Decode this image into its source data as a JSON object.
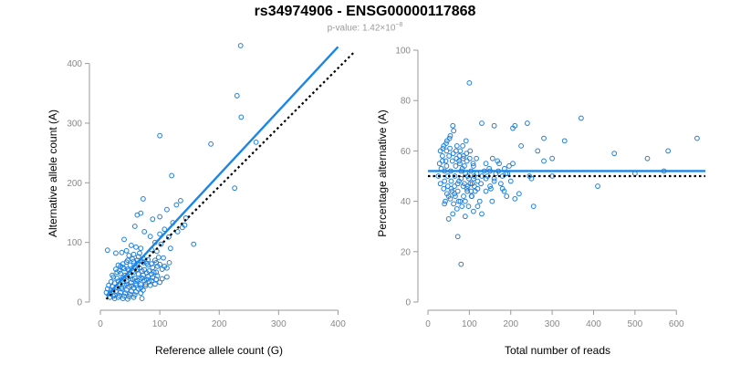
{
  "title": "rs34974906 - ENSG00000117868",
  "subtitle": {
    "prefix": "p-value: 1.42×10",
    "exponent": "−8"
  },
  "colors": {
    "points": "#1f7fdc",
    "fit_line": "#1a86e6",
    "reference_line": "#000000",
    "axis": "#999999",
    "tick_label": "#888888",
    "axis_label": "#000000"
  },
  "chart_data": [
    {
      "type": "scatter",
      "id": "left",
      "xlabel": "Reference allele count (G)",
      "ylabel": "Alternative allele count (A)",
      "xlim": [
        0,
        430
      ],
      "ylim": [
        0,
        430
      ],
      "xticks": [
        0,
        100,
        200,
        300,
        400
      ],
      "yticks": [
        0,
        100,
        200,
        300,
        400
      ],
      "grid": false,
      "fit_line": {
        "x": [
          10,
          400
        ],
        "y": [
          10,
          428
        ],
        "style": "solid"
      },
      "reference_line": {
        "x": [
          10,
          428
        ],
        "y": [
          5,
          420
        ],
        "style": "dotted"
      },
      "points": [
        [
          236,
          430
        ],
        [
          230,
          346
        ],
        [
          237,
          310
        ],
        [
          100,
          279
        ],
        [
          186,
          265
        ],
        [
          262,
          268
        ],
        [
          120,
          212
        ],
        [
          226,
          191
        ],
        [
          72,
          173
        ],
        [
          135,
          170
        ],
        [
          128,
          163
        ],
        [
          112,
          155
        ],
        [
          68,
          149
        ],
        [
          62,
          146
        ],
        [
          100,
          143
        ],
        [
          88,
          139
        ],
        [
          122,
          133
        ],
        [
          142,
          129
        ],
        [
          144,
          141
        ],
        [
          58,
          127
        ],
        [
          108,
          122
        ],
        [
          74,
          118
        ],
        [
          100,
          114
        ],
        [
          84,
          110
        ],
        [
          115,
          109
        ],
        [
          92,
          100
        ],
        [
          102,
          97
        ],
        [
          157,
          97
        ],
        [
          40,
          105
        ],
        [
          52,
          95
        ],
        [
          60,
          92
        ],
        [
          68,
          90
        ],
        [
          86,
          88
        ],
        [
          95,
          85
        ],
        [
          12,
          87
        ],
        [
          26,
          82
        ],
        [
          36,
          83
        ],
        [
          44,
          86
        ],
        [
          48,
          78
        ],
        [
          56,
          80
        ],
        [
          64,
          76
        ],
        [
          72,
          73
        ],
        [
          80,
          71
        ],
        [
          92,
          70
        ],
        [
          98,
          75
        ],
        [
          106,
          74
        ],
        [
          56,
          68
        ],
        [
          62,
          65
        ],
        [
          72,
          66
        ],
        [
          80,
          62
        ],
        [
          88,
          58
        ],
        [
          96,
          60
        ],
        [
          104,
          55
        ],
        [
          112,
          57
        ],
        [
          44,
          67
        ],
        [
          50,
          62
        ],
        [
          58,
          59
        ],
        [
          66,
          57
        ],
        [
          74,
          54
        ],
        [
          82,
          52
        ],
        [
          90,
          50
        ],
        [
          34,
          60
        ],
        [
          40,
          56
        ],
        [
          48,
          53
        ],
        [
          56,
          50
        ],
        [
          64,
          47
        ],
        [
          72,
          45
        ],
        [
          80,
          43
        ],
        [
          88,
          41
        ],
        [
          96,
          44
        ],
        [
          28,
          50
        ],
        [
          34,
          48
        ],
        [
          42,
          45
        ],
        [
          50,
          43
        ],
        [
          58,
          40
        ],
        [
          66,
          38
        ],
        [
          74,
          36
        ],
        [
          82,
          34
        ],
        [
          22,
          42
        ],
        [
          28,
          40
        ],
        [
          36,
          37
        ],
        [
          44,
          35
        ],
        [
          52,
          33
        ],
        [
          60,
          31
        ],
        [
          68,
          29
        ],
        [
          76,
          27
        ],
        [
          18,
          34
        ],
        [
          24,
          32
        ],
        [
          32,
          30
        ],
        [
          40,
          28
        ],
        [
          48,
          26
        ],
        [
          56,
          24
        ],
        [
          64,
          22
        ],
        [
          72,
          20
        ],
        [
          14,
          28
        ],
        [
          20,
          26
        ],
        [
          28,
          24
        ],
        [
          36,
          22
        ],
        [
          44,
          20
        ],
        [
          52,
          18
        ],
        [
          60,
          17
        ],
        [
          68,
          15
        ],
        [
          12,
          22
        ],
        [
          18,
          20
        ],
        [
          26,
          18
        ],
        [
          34,
          16
        ],
        [
          42,
          15
        ],
        [
          50,
          13
        ],
        [
          58,
          12
        ],
        [
          10,
          16
        ],
        [
          16,
          14
        ],
        [
          24,
          12
        ],
        [
          32,
          11
        ],
        [
          40,
          10
        ],
        [
          48,
          9
        ],
        [
          56,
          8
        ],
        [
          30,
          62
        ],
        [
          38,
          64
        ],
        [
          46,
          70
        ],
        [
          54,
          72
        ],
        [
          62,
          70
        ],
        [
          70,
          68
        ],
        [
          78,
          65
        ],
        [
          86,
          64
        ],
        [
          94,
          66
        ],
        [
          100,
          63
        ],
        [
          108,
          60
        ],
        [
          116,
          66
        ],
        [
          20,
          45
        ],
        [
          26,
          55
        ],
        [
          32,
          52
        ],
        [
          38,
          58
        ],
        [
          46,
          55
        ],
        [
          54,
          52
        ],
        [
          62,
          55
        ],
        [
          70,
          52
        ],
        [
          78,
          49
        ],
        [
          86,
          47
        ],
        [
          94,
          50
        ],
        [
          30,
          35
        ],
        [
          38,
          40
        ],
        [
          46,
          42
        ],
        [
          54,
          38
        ],
        [
          62,
          36
        ],
        [
          70,
          40
        ],
        [
          78,
          38
        ],
        [
          86,
          36
        ],
        [
          94,
          38
        ],
        [
          104,
          39
        ],
        [
          112,
          42
        ],
        [
          36,
          25
        ],
        [
          44,
          30
        ],
        [
          52,
          27
        ],
        [
          60,
          28
        ],
        [
          68,
          24
        ],
        [
          76,
          30
        ],
        [
          84,
          28
        ],
        [
          92,
          30
        ],
        [
          100,
          33
        ],
        [
          70,
          6
        ],
        [
          22,
          10
        ],
        [
          30,
          8
        ],
        [
          38,
          6
        ],
        [
          46,
          5
        ],
        [
          16,
          8
        ],
        [
          24,
          6
        ],
        [
          138,
          125
        ],
        [
          130,
          118
        ],
        [
          66,
          82
        ],
        [
          118,
          90
        ]
      ]
    },
    {
      "type": "scatter",
      "id": "right",
      "xlabel": "Total number of reads",
      "ylabel": "Percentage alternative (A)",
      "xlim": [
        0,
        670
      ],
      "ylim": [
        0,
        100
      ],
      "xticks": [
        0,
        100,
        200,
        300,
        400,
        500,
        600
      ],
      "yticks": [
        0,
        20,
        40,
        60,
        80,
        100
      ],
      "grid": false,
      "fit_line": {
        "x": [
          0,
          670
        ],
        "y": [
          52,
          52
        ],
        "style": "solid"
      },
      "reference_line": {
        "x": [
          0,
          670
        ],
        "y": [
          50,
          50
        ],
        "style": "dotted"
      },
      "points": [
        [
          100,
          87
        ],
        [
          370,
          73
        ],
        [
          650,
          65
        ],
        [
          210,
          70
        ],
        [
          205,
          69
        ],
        [
          240,
          71
        ],
        [
          130,
          71
        ],
        [
          160,
          70
        ],
        [
          330,
          64
        ],
        [
          280,
          65
        ],
        [
          580,
          60
        ],
        [
          450,
          59
        ],
        [
          530,
          57
        ],
        [
          300,
          57
        ],
        [
          265,
          60
        ],
        [
          280,
          56
        ],
        [
          410,
          46
        ],
        [
          570,
          52
        ],
        [
          500,
          51
        ],
        [
          250,
          49
        ],
        [
          205,
          55
        ],
        [
          225,
          62
        ],
        [
          245,
          50
        ],
        [
          300,
          50
        ],
        [
          255,
          38
        ],
        [
          150,
          52
        ],
        [
          185,
          53
        ],
        [
          200,
          48
        ],
        [
          190,
          42
        ],
        [
          210,
          41
        ],
        [
          220,
          43
        ],
        [
          180,
          45
        ],
        [
          170,
          52
        ],
        [
          160,
          48
        ],
        [
          150,
          46
        ],
        [
          140,
          49
        ],
        [
          130,
          50
        ],
        [
          130,
          35
        ],
        [
          125,
          40
        ],
        [
          80,
          15
        ],
        [
          72,
          26
        ],
        [
          40,
          39
        ],
        [
          50,
          33
        ],
        [
          60,
          35
        ],
        [
          90,
          34
        ],
        [
          110,
          36
        ],
        [
          120,
          38
        ],
        [
          105,
          42
        ],
        [
          95,
          44
        ],
        [
          85,
          46
        ],
        [
          75,
          48
        ],
        [
          65,
          50
        ],
        [
          55,
          52
        ],
        [
          45,
          54
        ],
        [
          35,
          56
        ],
        [
          25,
          50
        ],
        [
          30,
          47
        ],
        [
          38,
          45
        ],
        [
          46,
          43
        ],
        [
          54,
          41
        ],
        [
          62,
          39
        ],
        [
          70,
          37
        ],
        [
          78,
          40
        ],
        [
          86,
          42
        ],
        [
          94,
          45
        ],
        [
          102,
          47
        ],
        [
          110,
          49
        ],
        [
          118,
          51
        ],
        [
          30,
          60
        ],
        [
          38,
          62
        ],
        [
          46,
          64
        ],
        [
          54,
          66
        ],
        [
          62,
          68
        ],
        [
          70,
          62
        ],
        [
          78,
          60
        ],
        [
          86,
          58
        ],
        [
          94,
          56
        ],
        [
          102,
          60
        ],
        [
          110,
          54
        ],
        [
          40,
          52
        ],
        [
          48,
          50
        ],
        [
          56,
          48
        ],
        [
          64,
          46
        ],
        [
          72,
          44
        ],
        [
          80,
          52
        ],
        [
          88,
          54
        ],
        [
          96,
          50
        ],
        [
          104,
          52
        ],
        [
          112,
          50
        ],
        [
          120,
          48
        ],
        [
          35,
          58
        ],
        [
          43,
          56
        ],
        [
          51,
          58
        ],
        [
          59,
          56
        ],
        [
          67,
          54
        ],
        [
          75,
          56
        ],
        [
          83,
          53
        ],
        [
          91,
          51
        ],
        [
          99,
          49
        ],
        [
          107,
          47
        ],
        [
          42,
          40
        ],
        [
          50,
          42
        ],
        [
          58,
          44
        ],
        [
          66,
          42
        ],
        [
          74,
          40
        ],
        [
          82,
          38
        ],
        [
          90,
          40
        ],
        [
          98,
          38
        ],
        [
          106,
          42
        ],
        [
          114,
          44
        ],
        [
          45,
          60
        ],
        [
          53,
          61
        ],
        [
          61,
          59
        ],
        [
          69,
          57
        ],
        [
          77,
          55
        ],
        [
          85,
          57
        ],
        [
          93,
          59
        ],
        [
          101,
          57
        ],
        [
          109,
          55
        ],
        [
          117,
          57
        ],
        [
          140,
          55
        ],
        [
          148,
          53
        ],
        [
          156,
          57
        ],
        [
          164,
          51
        ],
        [
          172,
          55
        ],
        [
          180,
          50
        ],
        [
          188,
          51
        ],
        [
          196,
          54
        ],
        [
          140,
          44
        ],
        [
          155,
          40
        ],
        [
          60,
          70
        ],
        [
          52,
          65
        ],
        [
          44,
          63
        ],
        [
          36,
          61
        ],
        [
          28,
          55
        ],
        [
          32,
          53
        ],
        [
          40,
          48
        ],
        [
          48,
          46
        ],
        [
          56,
          45
        ],
        [
          64,
          43
        ],
        [
          72,
          47
        ],
        [
          80,
          49
        ],
        [
          88,
          47
        ],
        [
          96,
          46
        ],
        [
          104,
          44
        ],
        [
          112,
          46
        ],
        [
          120,
          45
        ],
        [
          128,
          47
        ],
        [
          136,
          52
        ],
        [
          144,
          50
        ],
        [
          152,
          45
        ],
        [
          160,
          49
        ],
        [
          168,
          56
        ],
        [
          176,
          47
        ],
        [
          184,
          44
        ],
        [
          192,
          51
        ],
        [
          68,
          60
        ],
        [
          76,
          58
        ],
        [
          84,
          62
        ],
        [
          92,
          64
        ]
      ]
    }
  ]
}
